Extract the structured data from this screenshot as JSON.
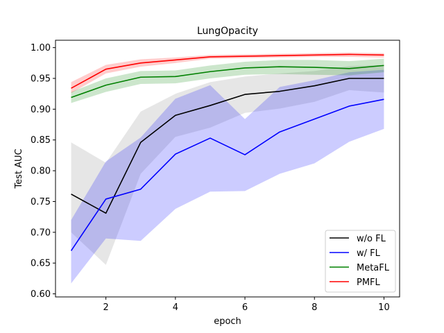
{
  "chart_data": {
    "type": "line",
    "title": "LungOpacity",
    "xlabel": "epoch",
    "ylabel": "Test AUC",
    "xlim": [
      0.55,
      10.45
    ],
    "ylim": [
      0.595,
      1.012
    ],
    "x_ticks": [
      2,
      4,
      6,
      8,
      10
    ],
    "y_ticks": [
      0.6,
      0.65,
      0.7,
      0.75,
      0.8,
      0.85,
      0.9,
      0.95,
      1.0
    ],
    "x_tick_labels": [
      "2",
      "4",
      "6",
      "8",
      "10"
    ],
    "y_tick_labels": [
      "0.60",
      "0.65",
      "0.70",
      "0.75",
      "0.80",
      "0.85",
      "0.90",
      "0.95",
      "1.00"
    ],
    "x": [
      1,
      2,
      3,
      4,
      5,
      6,
      7,
      8,
      9,
      10
    ],
    "legend_position": "lower-right",
    "series": [
      {
        "name": "w/o FL",
        "color": "#000000",
        "band_color": "#808080",
        "values": [
          0.762,
          0.731,
          0.846,
          0.89,
          0.906,
          0.924,
          0.929,
          0.938,
          0.95,
          0.95
        ],
        "lower": [
          0.7,
          0.647,
          0.795,
          0.855,
          0.87,
          0.894,
          0.901,
          0.912,
          0.931,
          0.927
        ],
        "upper": [
          0.846,
          0.813,
          0.896,
          0.925,
          0.944,
          0.953,
          0.958,
          0.962,
          0.97,
          0.972
        ]
      },
      {
        "name": "w/ FL",
        "color": "#0000ff",
        "band_color": "#0000ff",
        "values": [
          0.67,
          0.754,
          0.77,
          0.827,
          0.853,
          0.826,
          0.863,
          0.884,
          0.905,
          0.916
        ],
        "lower": [
          0.617,
          0.69,
          0.686,
          0.738,
          0.766,
          0.767,
          0.795,
          0.812,
          0.847,
          0.868
        ],
        "upper": [
          0.72,
          0.815,
          0.854,
          0.917,
          0.939,
          0.884,
          0.936,
          0.947,
          0.96,
          0.964
        ]
      },
      {
        "name": "MetaFL",
        "color": "#008000",
        "band_color": "#008000",
        "values": [
          0.919,
          0.939,
          0.952,
          0.953,
          0.961,
          0.967,
          0.969,
          0.968,
          0.966,
          0.971
        ],
        "lower": [
          0.91,
          0.928,
          0.941,
          0.942,
          0.95,
          0.956,
          0.957,
          0.956,
          0.955,
          0.96
        ],
        "upper": [
          0.928,
          0.95,
          0.962,
          0.963,
          0.971,
          0.977,
          0.98,
          0.98,
          0.978,
          0.982
        ]
      },
      {
        "name": "PMFL",
        "color": "#ff0000",
        "band_color": "#ff0000",
        "values": [
          0.934,
          0.965,
          0.975,
          0.98,
          0.985,
          0.986,
          0.987,
          0.988,
          0.989,
          0.988
        ],
        "lower": [
          0.926,
          0.958,
          0.969,
          0.975,
          0.982,
          0.983,
          0.984,
          0.985,
          0.985,
          0.984
        ],
        "upper": [
          0.944,
          0.972,
          0.981,
          0.984,
          0.988,
          0.989,
          0.99,
          0.991,
          0.992,
          0.991
        ]
      }
    ]
  }
}
